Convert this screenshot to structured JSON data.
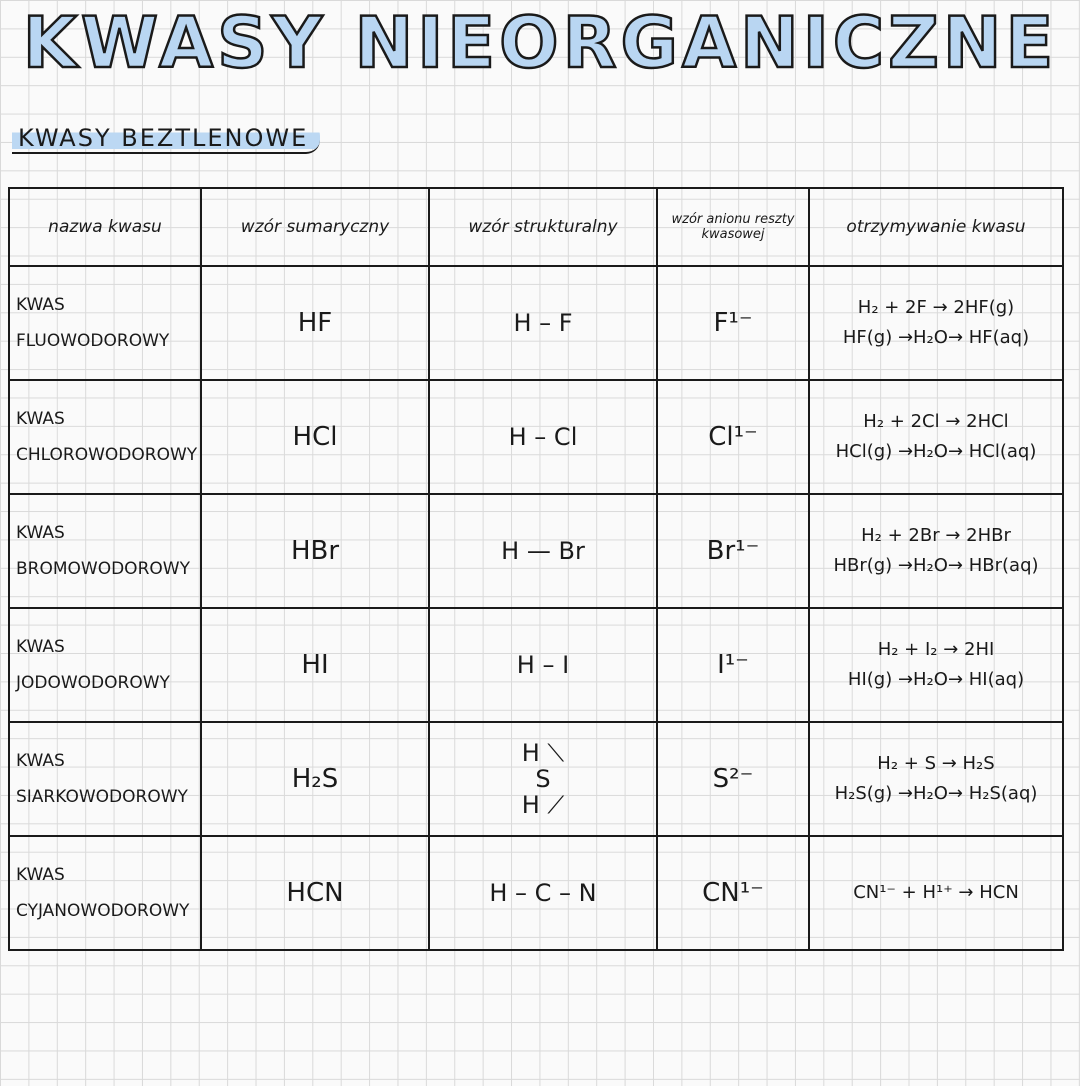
{
  "title": "KWASY NIEORGANICZNE",
  "section": "KWASY BEZTLENOWE",
  "table": {
    "headers": [
      "nazwa kwasu",
      "wzór sumaryczny",
      "wzór strukturalny",
      "wzór anionu reszty kwasowej",
      "otrzymywanie kwasu"
    ],
    "rows": [
      {
        "name": [
          "KWAS",
          "FLUOWODOROWY"
        ],
        "formula": "HF",
        "structural": [
          "H – F"
        ],
        "anion": "F¹⁻",
        "reaction": [
          "H₂ + 2F → 2HF(g)",
          "HF(g) →H₂O→ HF(aq)"
        ]
      },
      {
        "name": [
          "KWAS",
          "CHLOROWODOROWY"
        ],
        "formula": "HCl",
        "structural": [
          "H – Cl"
        ],
        "anion": "Cl¹⁻",
        "reaction": [
          "H₂ + 2Cl → 2HCl",
          "HCl(g) →H₂O→ HCl(aq)"
        ]
      },
      {
        "name": [
          "KWAS",
          "BROMOWODOROWY"
        ],
        "formula": "HBr",
        "structural": [
          "H — Br"
        ],
        "anion": "Br¹⁻",
        "reaction": [
          "H₂ + 2Br → 2HBr",
          "HBr(g) →H₂O→ HBr(aq)"
        ]
      },
      {
        "name": [
          "KWAS",
          "JODOWODOROWY"
        ],
        "formula": "HI",
        "structural": [
          "H – I"
        ],
        "anion": "I¹⁻",
        "reaction": [
          "H₂ + I₂ → 2HI",
          "HI(g) →H₂O→ HI(aq)"
        ]
      },
      {
        "name": [
          "KWAS",
          "SIARKOWODOROWY"
        ],
        "formula": "H₂S",
        "structural": [
          "H ⟍",
          "S",
          "H ⟋"
        ],
        "anion": "S²⁻",
        "reaction": [
          "H₂ + S → H₂S",
          "H₂S(g) →H₂O→ H₂S(aq)"
        ]
      },
      {
        "name": [
          "KWAS",
          "CYJANOWODOROWY"
        ],
        "formula": "HCN",
        "structural": [
          "H – C – N"
        ],
        "anion": "CN¹⁻",
        "reaction": [
          "CN¹⁻ + H¹⁺ → HCN"
        ]
      }
    ]
  }
}
